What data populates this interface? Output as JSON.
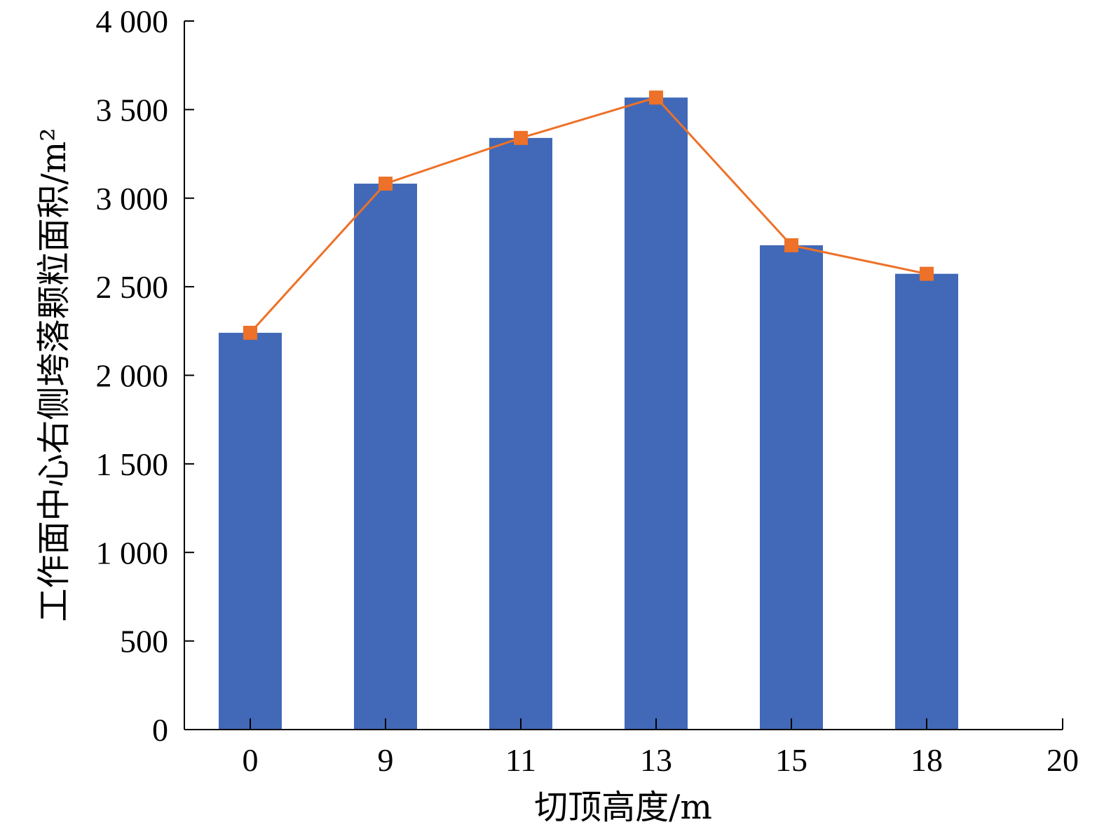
{
  "chart_data": {
    "type": "bar",
    "categories": [
      "0",
      "9",
      "11",
      "13",
      "15",
      "18",
      "20"
    ],
    "series": [
      {
        "kind": "bar",
        "values": [
          2240,
          3082,
          3340,
          3568,
          2734,
          2573,
          null
        ],
        "color": "#4169b8"
      },
      {
        "kind": "line",
        "values": [
          2240,
          3082,
          3340,
          3568,
          2734,
          2573,
          null
        ],
        "color": "#ed7128",
        "marker": "square"
      }
    ],
    "xlabel": "切顶高度/m",
    "ylabel": "工作面中心右侧垮落颗粒面积/m²",
    "ylim": [
      0,
      4000
    ],
    "yticks": [
      0,
      500,
      1000,
      1500,
      2000,
      2500,
      3000,
      3500,
      4000
    ],
    "ytick_labels": [
      "0",
      "500",
      "1 000",
      "1 500",
      "2 000",
      "2 500",
      "3 000",
      "3 500",
      "4 000"
    ],
    "grid": false,
    "legend": "none"
  }
}
